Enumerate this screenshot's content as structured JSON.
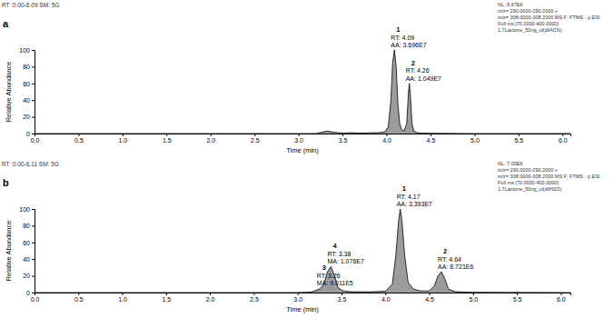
{
  "chart_data": [
    {
      "type": "area",
      "panel": "a",
      "header": "RT :0.00-6.09 SM: 5G",
      "info": [
        "NL: 8.67E6",
        "m/z= 290.0000-290.2000 +",
        "m/z= 308.0000-308.2000 MS  F: FTMS - p ESI",
        "Full ms [70.0000-400.0000]",
        "1.7Lactone_50ng_ul(dilACN)"
      ],
      "x_label": "Time (min)",
      "y_label": "Relative Abundance",
      "xlim": [
        0,
        6.09
      ],
      "xticks": [
        {
          "value": 0,
          "label": "0.0"
        },
        {
          "value": 0.5,
          "label": "0.5"
        },
        {
          "value": 1,
          "label": "1.0"
        },
        {
          "value": 1.5,
          "label": "1.5"
        },
        {
          "value": 2,
          "label": "2.0"
        },
        {
          "value": 2.5,
          "label": "2.5"
        },
        {
          "value": 3,
          "label": "3.0"
        },
        {
          "value": 3.5,
          "label": "3.5"
        },
        {
          "value": 4,
          "label": "4.0"
        },
        {
          "value": 4.5,
          "label": "4.5"
        },
        {
          "value": 5,
          "label": "5.0"
        },
        {
          "value": 5.5,
          "label": "5.5"
        },
        {
          "value": 6,
          "label": "6.0"
        }
      ],
      "ylim": [
        0,
        100
      ],
      "yticks": [
        0,
        20,
        40,
        60,
        80,
        100
      ],
      "color": "#000000",
      "x": [
        0,
        3.2,
        3.28,
        3.33,
        3.4,
        3.5,
        3.6,
        3.7,
        3.8,
        3.9,
        3.98,
        4.02,
        4.05,
        4.07,
        4.09,
        4.11,
        4.13,
        4.15,
        4.17,
        4.2,
        4.23,
        4.25,
        4.26,
        4.27,
        4.29,
        4.31,
        4.35,
        4.4,
        4.5,
        4.7,
        5.0,
        6.09
      ],
      "values": [
        0,
        0,
        2,
        3,
        1.5,
        0.5,
        1,
        0.5,
        0.8,
        1,
        2,
        8,
        40,
        85,
        100,
        80,
        35,
        12,
        5,
        3,
        12,
        50,
        60,
        48,
        12,
        3,
        1,
        0.5,
        0.3,
        0.2,
        0,
        0
      ],
      "peaks": [
        {
          "label": "1",
          "rt": 4.09,
          "rt_label": "RT: 4.09",
          "area_label": "AA: 3.696E7",
          "height": 100
        },
        {
          "label": "2",
          "rt": 4.26,
          "rt_label": "RT: 4.26",
          "area_label": "AA: 1.049E7",
          "height": 60
        }
      ]
    },
    {
      "type": "area",
      "panel": "b",
      "header": "RT :0.00-6.11 SM: 5G",
      "info": [
        "NL: 7.00E6",
        "m/z= 290.0000-290.2000 +",
        "m/z= 308.0000-308.2000 MS  F: FTMS - p ESI",
        "Full ms [70.0000-400.0000]",
        "1.7Lactone_50ng_ul(dilH2O)"
      ],
      "x_label": "Time (min)",
      "y_label": "Relative Abundance",
      "xlim": [
        0,
        6.11
      ],
      "xticks": [
        {
          "value": 0,
          "label": "0.0"
        },
        {
          "value": 0.5,
          "label": "0.5"
        },
        {
          "value": 1,
          "label": "1.0"
        },
        {
          "value": 1.5,
          "label": "1.5"
        },
        {
          "value": 2,
          "label": "2.0"
        },
        {
          "value": 2.5,
          "label": "2.5"
        },
        {
          "value": 3,
          "label": "3.0"
        },
        {
          "value": 3.5,
          "label": "3.5"
        },
        {
          "value": 4,
          "label": "4.0"
        },
        {
          "value": 4.5,
          "label": "4.5"
        },
        {
          "value": 5,
          "label": "5.0"
        },
        {
          "value": 5.5,
          "label": "5.5"
        },
        {
          "value": 6,
          "label": "6.0"
        }
      ],
      "ylim": [
        0,
        100
      ],
      "yticks": [
        0,
        20,
        40,
        60,
        80,
        100
      ],
      "color": "#000000",
      "x": [
        0,
        3.0,
        3.15,
        3.22,
        3.26,
        3.3,
        3.34,
        3.38,
        3.42,
        3.46,
        3.52,
        3.6,
        3.8,
        4.0,
        4.08,
        4.12,
        4.15,
        4.17,
        4.19,
        4.22,
        4.26,
        4.32,
        4.4,
        4.5,
        4.56,
        4.6,
        4.64,
        4.68,
        4.72,
        4.8,
        5.0,
        6.11
      ],
      "values": [
        0,
        0,
        0.5,
        3,
        5,
        10,
        25,
        31,
        20,
        6,
        2,
        1,
        0.8,
        1.5,
        10,
        45,
        85,
        100,
        85,
        45,
        12,
        4,
        2,
        2,
        8,
        20,
        25,
        16,
        4,
        1,
        0.3,
        0
      ],
      "peaks": [
        {
          "label": "3",
          "rt": 3.26,
          "rt_label": "RT: 3.26",
          "area_label": "MA: 9.011E5",
          "height": 5
        },
        {
          "label": "4",
          "rt": 3.38,
          "rt_label": "RT: 3.38",
          "area_label": "MA: 1.076E7",
          "height": 31
        },
        {
          "label": "1",
          "rt": 4.17,
          "rt_label": "RT: 4.17",
          "area_label": "AA: 3.393E7",
          "height": 100
        },
        {
          "label": "2",
          "rt": 4.64,
          "rt_label": "RT: 4.64",
          "area_label": "AA: 8.721E6",
          "height": 25
        }
      ]
    }
  ]
}
